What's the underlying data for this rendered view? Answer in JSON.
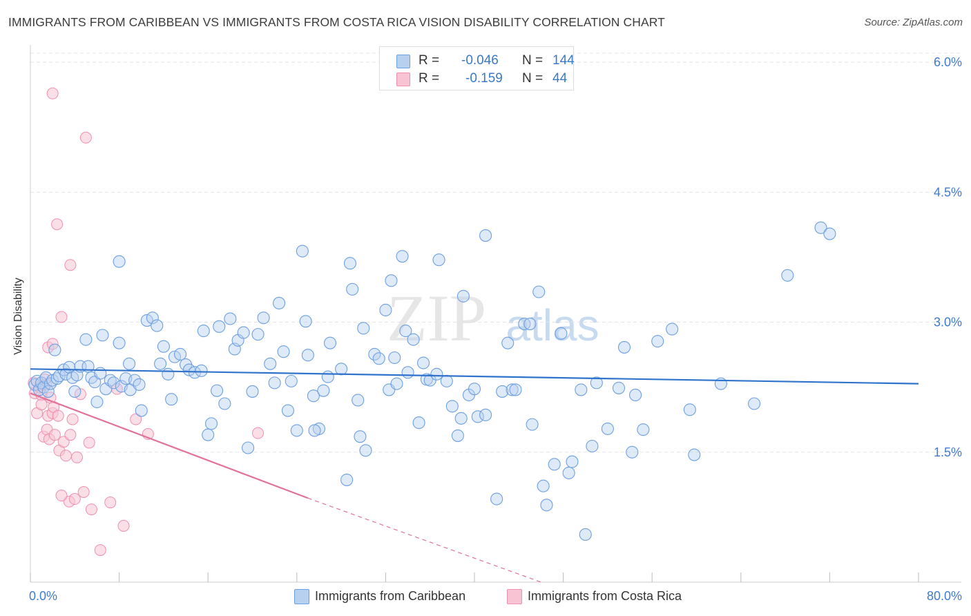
{
  "title": "IMMIGRANTS FROM CARIBBEAN VS IMMIGRANTS FROM COSTA RICA VISION DISABILITY CORRELATION CHART",
  "source": "Source: ZipAtlas.com",
  "watermark": {
    "zip": "ZIP",
    "atlas": "atlas"
  },
  "legend_top": {
    "rows": [
      {
        "r_label": "R =",
        "r_value": "-0.046",
        "n_label": "N =",
        "n_value": "144"
      },
      {
        "r_label": "R =",
        "r_value": "-0.159",
        "n_label": "N =",
        "n_value": "44"
      }
    ]
  },
  "legend_bottom": [
    "Immigrants from Caribbean",
    "Immigrants from Costa Rica"
  ],
  "colors": {
    "blue_fill": "#b8d0f0",
    "blue_stroke": "#6c9fe0",
    "blue_line": "#2f73cc",
    "pink_fill": "#f8c4d4",
    "pink_stroke": "#ee8fb0",
    "pink_line": "#e2729a",
    "axis_text": "#3f7bd0",
    "grid": "#e4e4e4"
  },
  "chart_data": {
    "type": "scatter",
    "title": "IMMIGRANTS FROM CARIBBEAN VS IMMIGRANTS FROM COSTA RICA VISION DISABILITY CORRELATION CHART",
    "xlabel": "",
    "ylabel": "Vision Disability",
    "xlim": [
      0,
      80
    ],
    "ylim": [
      0,
      6.2
    ],
    "x_tick_labels": [
      "0.0%",
      "80.0%"
    ],
    "y_ticks": [
      1.5,
      3.0,
      4.5,
      6.0
    ],
    "y_tick_labels": [
      "1.5%",
      "3.0%",
      "4.5%",
      "6.0%"
    ],
    "legend_position": "top-center",
    "series": [
      {
        "name": "Immigrants from Caribbean",
        "r": -0.046,
        "n": 144,
        "trend": {
          "x": [
            0,
            80
          ],
          "y": [
            2.46,
            2.29
          ]
        },
        "points": [
          [
            0.4,
            2.28
          ],
          [
            0.6,
            2.32
          ],
          [
            0.8,
            2.22
          ],
          [
            1.0,
            2.3
          ],
          [
            1.2,
            2.25
          ],
          [
            1.4,
            2.36
          ],
          [
            1.6,
            2.2
          ],
          [
            1.8,
            2.29
          ],
          [
            2.0,
            2.33
          ],
          [
            2.2,
            2.68
          ],
          [
            2.4,
            2.35
          ],
          [
            2.6,
            2.38
          ],
          [
            3.0,
            2.45
          ],
          [
            3.2,
            2.4
          ],
          [
            3.5,
            2.48
          ],
          [
            3.8,
            2.36
          ],
          [
            4.0,
            2.2
          ],
          [
            4.2,
            2.39
          ],
          [
            4.5,
            2.49
          ],
          [
            5.0,
            2.8
          ],
          [
            5.2,
            2.49
          ],
          [
            5.5,
            2.36
          ],
          [
            5.8,
            2.31
          ],
          [
            6.0,
            2.08
          ],
          [
            6.3,
            2.41
          ],
          [
            6.5,
            2.85
          ],
          [
            6.8,
            2.23
          ],
          [
            7.2,
            2.33
          ],
          [
            7.5,
            2.3
          ],
          [
            8.0,
            2.76
          ],
          [
            8.2,
            2.26
          ],
          [
            8.6,
            2.35
          ],
          [
            8.9,
            2.52
          ],
          [
            9.0,
            2.22
          ],
          [
            9.4,
            2.33
          ],
          [
            9.8,
            2.28
          ],
          [
            10.0,
            1.98
          ],
          [
            10.5,
            3.02
          ],
          [
            11.0,
            3.05
          ],
          [
            11.4,
            2.96
          ],
          [
            11.7,
            2.52
          ],
          [
            12.0,
            2.72
          ],
          [
            12.4,
            2.4
          ],
          [
            12.7,
            2.11
          ],
          [
            13.0,
            2.6
          ],
          [
            13.5,
            2.63
          ],
          [
            14.0,
            2.51
          ],
          [
            14.3,
            2.45
          ],
          [
            14.8,
            2.42
          ],
          [
            15.4,
            2.44
          ],
          [
            15.6,
            2.9
          ],
          [
            16.0,
            1.7
          ],
          [
            16.3,
            1.83
          ],
          [
            16.8,
            2.21
          ],
          [
            17.0,
            2.95
          ],
          [
            17.5,
            2.06
          ],
          [
            18.0,
            3.04
          ],
          [
            18.4,
            2.69
          ],
          [
            18.7,
            2.79
          ],
          [
            19.2,
            2.88
          ],
          [
            19.6,
            1.55
          ],
          [
            20.0,
            2.2
          ],
          [
            20.5,
            2.86
          ],
          [
            21.0,
            3.05
          ],
          [
            21.6,
            2.52
          ],
          [
            22.0,
            2.3
          ],
          [
            22.4,
            3.22
          ],
          [
            22.8,
            2.66
          ],
          [
            23.2,
            1.98
          ],
          [
            23.5,
            2.32
          ],
          [
            24.0,
            1.75
          ],
          [
            24.5,
            3.82
          ],
          [
            24.8,
            3.01
          ],
          [
            25.0,
            2.62
          ],
          [
            25.5,
            2.15
          ],
          [
            26.0,
            1.77
          ],
          [
            26.4,
            2.21
          ],
          [
            26.8,
            2.37
          ],
          [
            27.0,
            2.76
          ],
          [
            28.0,
            2.46
          ],
          [
            28.5,
            1.18
          ],
          [
            28.8,
            3.68
          ],
          [
            29.0,
            3.38
          ],
          [
            29.5,
            2.1
          ],
          [
            29.7,
            1.68
          ],
          [
            30.0,
            2.93
          ],
          [
            31.0,
            2.63
          ],
          [
            31.4,
            2.58
          ],
          [
            32.0,
            3.14
          ],
          [
            32.3,
            2.22
          ],
          [
            32.5,
            3.48
          ],
          [
            32.8,
            2.59
          ],
          [
            33.0,
            2.29
          ],
          [
            33.5,
            3.76
          ],
          [
            33.8,
            2.9
          ],
          [
            34.0,
            2.42
          ],
          [
            34.5,
            2.8
          ],
          [
            35.0,
            1.84
          ],
          [
            35.4,
            2.53
          ],
          [
            35.7,
            2.34
          ],
          [
            36.0,
            2.33
          ],
          [
            36.6,
            2.4
          ],
          [
            36.8,
            3.72
          ],
          [
            37.5,
            2.32
          ],
          [
            38.0,
            2.03
          ],
          [
            38.5,
            1.69
          ],
          [
            38.8,
            1.89
          ],
          [
            39.0,
            3.3
          ],
          [
            39.5,
            2.16
          ],
          [
            40.0,
            2.23
          ],
          [
            40.3,
            1.91
          ],
          [
            41.0,
            1.93
          ],
          [
            42.0,
            0.96
          ],
          [
            42.5,
            2.2
          ],
          [
            43.0,
            2.76
          ],
          [
            43.4,
            2.22
          ],
          [
            43.7,
            2.22
          ],
          [
            44.5,
            2.98
          ],
          [
            45.0,
            2.98
          ],
          [
            45.2,
            1.82
          ],
          [
            45.8,
            3.35
          ],
          [
            46.2,
            1.11
          ],
          [
            46.5,
            0.89
          ],
          [
            47.2,
            1.36
          ],
          [
            47.8,
            2.87
          ],
          [
            48.5,
            1.26
          ],
          [
            48.8,
            1.39
          ],
          [
            49.6,
            2.22
          ],
          [
            50.0,
            0.55
          ],
          [
            50.6,
            1.57
          ],
          [
            51.0,
            2.3
          ],
          [
            52.0,
            1.77
          ],
          [
            53.0,
            2.24
          ],
          [
            53.5,
            2.71
          ],
          [
            54.2,
            1.5
          ],
          [
            54.5,
            2.16
          ],
          [
            55.2,
            1.76
          ],
          [
            56.5,
            2.78
          ],
          [
            57.8,
            2.92
          ],
          [
            59.4,
            1.99
          ],
          [
            59.8,
            1.47
          ],
          [
            62.2,
            2.29
          ],
          [
            65.2,
            2.06
          ],
          [
            68.2,
            3.54
          ],
          [
            71.2,
            4.09
          ],
          [
            72.0,
            4.02
          ],
          [
            25.6,
            1.75
          ],
          [
            30.2,
            1.52
          ],
          [
            8.0,
            3.7
          ],
          [
            41.0,
            4.0
          ]
        ]
      },
      {
        "name": "Immigrants from Costa Rica",
        "r": -0.159,
        "n": 44,
        "trend": {
          "x": [
            0,
            25
          ],
          "y": [
            2.18,
            0.97
          ]
        },
        "trend_dashed": {
          "x": [
            25,
            46
          ],
          "y": [
            0.97,
            0.0
          ]
        },
        "points": [
          [
            0.3,
            2.3
          ],
          [
            0.4,
            2.18
          ],
          [
            0.6,
            1.95
          ],
          [
            0.8,
            2.25
          ],
          [
            1.0,
            2.16
          ],
          [
            1.0,
            2.05
          ],
          [
            1.2,
            1.68
          ],
          [
            1.3,
            2.34
          ],
          [
            1.4,
            2.28
          ],
          [
            1.5,
            1.76
          ],
          [
            1.6,
            2.71
          ],
          [
            1.6,
            1.92
          ],
          [
            1.7,
            1.65
          ],
          [
            1.8,
            2.13
          ],
          [
            2.0,
            2.75
          ],
          [
            2.0,
            1.95
          ],
          [
            2.1,
            2.02
          ],
          [
            2.2,
            1.7
          ],
          [
            2.4,
            4.13
          ],
          [
            2.5,
            1.92
          ],
          [
            2.6,
            1.52
          ],
          [
            2.8,
            3.06
          ],
          [
            3.0,
            1.62
          ],
          [
            3.2,
            1.46
          ],
          [
            3.5,
            0.93
          ],
          [
            3.6,
            1.7
          ],
          [
            3.8,
            1.88
          ],
          [
            4.0,
            0.96
          ],
          [
            4.2,
            1.44
          ],
          [
            4.5,
            2.17
          ],
          [
            4.8,
            1.04
          ],
          [
            5.0,
            5.13
          ],
          [
            5.3,
            1.61
          ],
          [
            5.5,
            0.84
          ],
          [
            6.3,
            0.37
          ],
          [
            7.2,
            0.92
          ],
          [
            7.8,
            2.23
          ],
          [
            8.4,
            0.65
          ],
          [
            9.5,
            1.88
          ],
          [
            10.6,
            1.71
          ],
          [
            2.0,
            5.64
          ],
          [
            3.6,
            3.66
          ],
          [
            2.8,
            1.0
          ],
          [
            20.5,
            1.72
          ]
        ]
      }
    ]
  }
}
